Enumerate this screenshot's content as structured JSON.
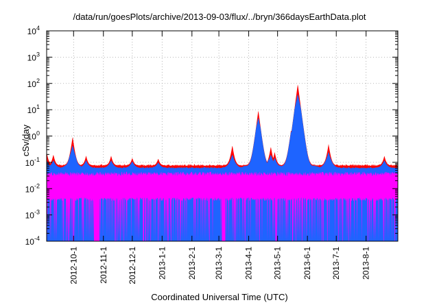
{
  "chart_data": {
    "type": "area",
    "title": "/data/run/goesPlots/archive/2013-09-03/flux/../bryn/366daysEarthData.plot",
    "xlabel": "Coordinated Universal Time (UTC)",
    "ylabel": "cSv/day",
    "yscale": "log",
    "ylim": [
      0.0001,
      10000
    ],
    "xlim": [
      "2012-09-03",
      "2013-09-03"
    ],
    "grid": true,
    "y_ticks": [
      {
        "value": 0.0001,
        "base": "10",
        "exp": "-4"
      },
      {
        "value": 0.001,
        "base": "10",
        "exp": "-3"
      },
      {
        "value": 0.01,
        "base": "10",
        "exp": "-2"
      },
      {
        "value": 0.1,
        "base": "10",
        "exp": "-1"
      },
      {
        "value": 1,
        "base": "10",
        "exp": "0"
      },
      {
        "value": 10,
        "base": "10",
        "exp": "1"
      },
      {
        "value": 100,
        "base": "10",
        "exp": "2"
      },
      {
        "value": 1000,
        "base": "10",
        "exp": "3"
      },
      {
        "value": 10000,
        "base": "10",
        "exp": "4"
      }
    ],
    "x_ticks": [
      "2012-10-1",
      "2012-11-1",
      "2012-12-1",
      "2013-1-1",
      "2013-2-1",
      "2013-3-1",
      "2013-4-1",
      "2013-5-1",
      "2013-6-1",
      "2013-7-1",
      "2013-8-1"
    ],
    "series_colors": [
      "#ff0000",
      "#00aa00",
      "#00c8c8",
      "#1e64ff",
      "#ff00ff"
    ],
    "baseline_values": {
      "red": 0.075,
      "blue": 0.06,
      "magenta": 0.04
    },
    "peaks": [
      {
        "date": "2012-09-03",
        "red": 0.25,
        "blue": 0.12
      },
      {
        "date": "2012-09-10",
        "red": 0.2,
        "blue": 0.12
      },
      {
        "date": "2012-09-30",
        "red": 0.95,
        "blue": 0.45
      },
      {
        "date": "2012-10-14",
        "red": 0.18,
        "blue": 0.12
      },
      {
        "date": "2012-11-09",
        "red": 0.18,
        "blue": 0.12
      },
      {
        "date": "2012-12-01",
        "red": 0.15,
        "blue": 0.11
      },
      {
        "date": "2012-12-28",
        "red": 0.14,
        "blue": 0.1
      },
      {
        "date": "2013-03-15",
        "red": 0.45,
        "blue": 0.2
      },
      {
        "date": "2013-04-11",
        "red": 9.5,
        "blue": 5.0
      },
      {
        "date": "2013-04-24",
        "red": 0.4,
        "blue": 0.2
      },
      {
        "date": "2013-04-28",
        "red": 0.25,
        "blue": 0.15
      },
      {
        "date": "2013-05-15",
        "red": 1.7,
        "blue": 0.8
      },
      {
        "date": "2013-05-22",
        "red": 95,
        "blue": 40
      },
      {
        "date": "2013-06-23",
        "red": 0.5,
        "blue": 0.25
      },
      {
        "date": "2013-08-20",
        "red": 0.18,
        "blue": 0.12
      }
    ],
    "magenta_gaps": [
      {
        "start": "2012-10-22",
        "end": "2012-10-28"
      },
      {
        "start": "2013-03-04",
        "end": "2013-03-08"
      }
    ]
  }
}
